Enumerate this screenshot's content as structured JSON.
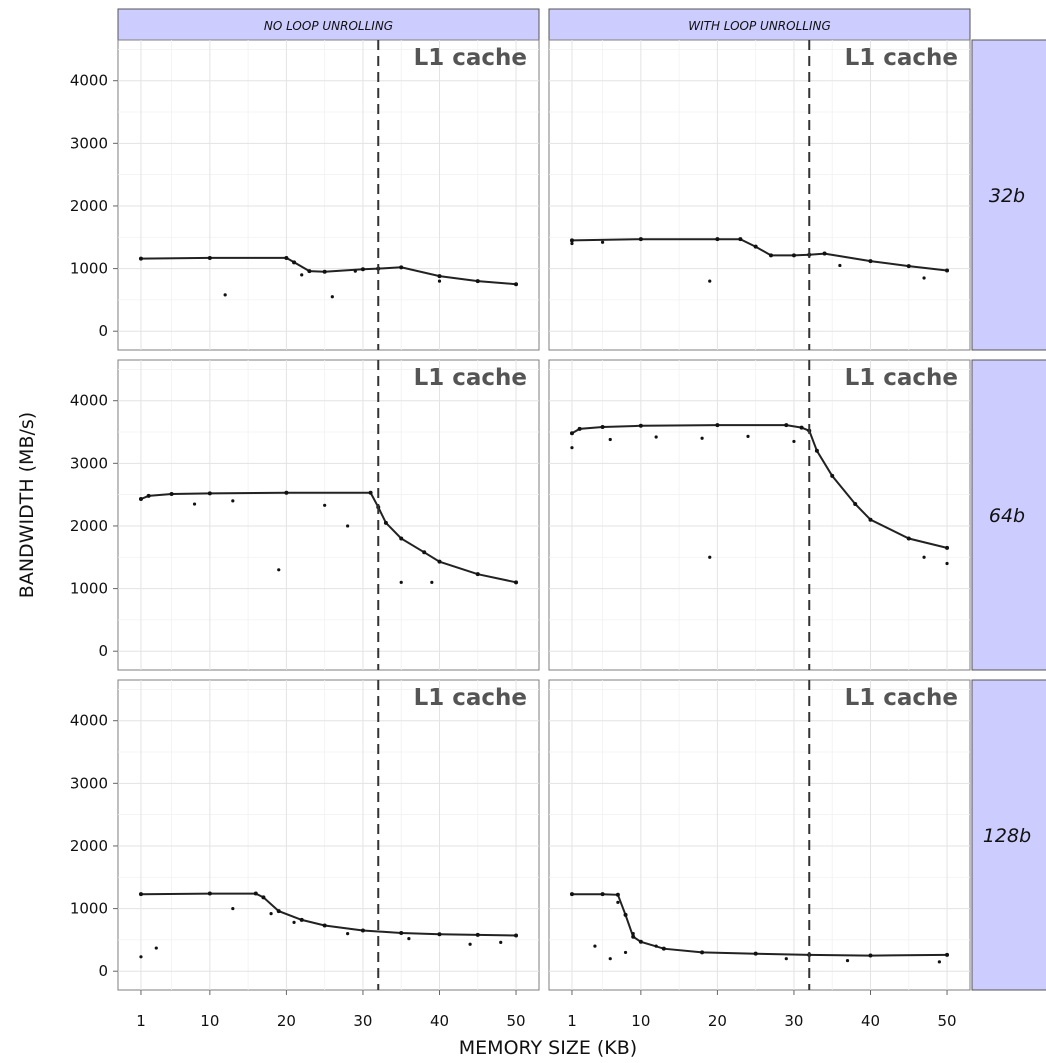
{
  "chart_data": {
    "type": "scatter",
    "xlabel": "MEMORY SIZE (KB)",
    "ylabel": "BANDWIDTH (MB/s)",
    "xlim": [
      -2,
      53
    ],
    "ylim": [
      -300,
      4650
    ],
    "x_ticks": [
      1,
      10,
      20,
      30,
      40,
      50
    ],
    "y_ticks": [
      0,
      1000,
      2000,
      3000,
      4000
    ],
    "grid": true,
    "columns": [
      "NO LOOP UNROLLING",
      "WITH LOOP UNROLLING"
    ],
    "rows": [
      "32b",
      "64b",
      "128b"
    ],
    "vline_x": 32,
    "vline_label": "L1 cache",
    "panels": [
      {
        "row": "32b",
        "column": "NO LOOP UNROLLING",
        "line": [
          [
            1,
            1160
          ],
          [
            10,
            1170
          ],
          [
            20,
            1170
          ],
          [
            21,
            1100
          ],
          [
            23,
            960
          ],
          [
            25,
            950
          ],
          [
            30,
            990
          ],
          [
            32,
            1000
          ],
          [
            35,
            1020
          ],
          [
            40,
            880
          ],
          [
            45,
            800
          ],
          [
            50,
            750
          ]
        ],
        "outliers": [
          [
            12,
            580
          ],
          [
            26,
            550
          ],
          [
            40,
            800
          ],
          [
            22,
            900
          ],
          [
            29,
            960
          ]
        ]
      },
      {
        "row": "32b",
        "column": "WITH LOOP UNROLLING",
        "line": [
          [
            1,
            1450
          ],
          [
            10,
            1470
          ],
          [
            20,
            1470
          ],
          [
            23,
            1470
          ],
          [
            25,
            1350
          ],
          [
            27,
            1210
          ],
          [
            30,
            1210
          ],
          [
            32,
            1220
          ],
          [
            34,
            1240
          ],
          [
            40,
            1120
          ],
          [
            45,
            1040
          ],
          [
            50,
            970
          ]
        ],
        "outliers": [
          [
            1,
            1400
          ],
          [
            19,
            800
          ],
          [
            36,
            1050
          ],
          [
            47,
            850
          ],
          [
            5,
            1420
          ]
        ]
      },
      {
        "row": "64b",
        "column": "NO LOOP UNROLLING",
        "line": [
          [
            1,
            2430
          ],
          [
            2,
            2480
          ],
          [
            5,
            2510
          ],
          [
            10,
            2520
          ],
          [
            20,
            2530
          ],
          [
            31,
            2530
          ],
          [
            32,
            2300
          ],
          [
            33,
            2050
          ],
          [
            35,
            1800
          ],
          [
            38,
            1580
          ],
          [
            40,
            1430
          ],
          [
            45,
            1230
          ],
          [
            50,
            1100
          ]
        ],
        "outliers": [
          [
            19,
            1300
          ],
          [
            35,
            1100
          ],
          [
            39,
            1100
          ],
          [
            28,
            2000
          ],
          [
            25,
            2330
          ],
          [
            8,
            2350
          ],
          [
            13,
            2400
          ]
        ]
      },
      {
        "row": "64b",
        "column": "WITH LOOP UNROLLING",
        "line": [
          [
            1,
            3480
          ],
          [
            2,
            3550
          ],
          [
            5,
            3580
          ],
          [
            10,
            3600
          ],
          [
            20,
            3610
          ],
          [
            29,
            3610
          ],
          [
            31,
            3570
          ],
          [
            32,
            3520
          ],
          [
            33,
            3200
          ],
          [
            35,
            2800
          ],
          [
            38,
            2350
          ],
          [
            40,
            2100
          ],
          [
            45,
            1800
          ],
          [
            50,
            1650
          ]
        ],
        "outliers": [
          [
            1,
            3250
          ],
          [
            19,
            1500
          ],
          [
            47,
            1500
          ],
          [
            50,
            1400
          ],
          [
            6,
            3380
          ],
          [
            12,
            3420
          ],
          [
            18,
            3400
          ],
          [
            24,
            3430
          ],
          [
            30,
            3350
          ]
        ]
      },
      {
        "row": "128b",
        "column": "NO LOOP UNROLLING",
        "line": [
          [
            1,
            1230
          ],
          [
            10,
            1240
          ],
          [
            16,
            1240
          ],
          [
            17,
            1180
          ],
          [
            19,
            960
          ],
          [
            22,
            820
          ],
          [
            25,
            730
          ],
          [
            30,
            650
          ],
          [
            35,
            610
          ],
          [
            40,
            590
          ],
          [
            45,
            580
          ],
          [
            50,
            570
          ]
        ],
        "outliers": [
          [
            1,
            230
          ],
          [
            3,
            370
          ],
          [
            13,
            1000
          ],
          [
            18,
            920
          ],
          [
            21,
            780
          ],
          [
            28,
            600
          ],
          [
            36,
            520
          ],
          [
            44,
            430
          ],
          [
            48,
            460
          ]
        ]
      },
      {
        "row": "128b",
        "column": "WITH LOOP UNROLLING",
        "line": [
          [
            1,
            1230
          ],
          [
            5,
            1230
          ],
          [
            7,
            1220
          ],
          [
            8,
            900
          ],
          [
            9,
            550
          ],
          [
            10,
            470
          ],
          [
            13,
            360
          ],
          [
            18,
            300
          ],
          [
            25,
            280
          ],
          [
            32,
            260
          ],
          [
            40,
            250
          ],
          [
            50,
            260
          ]
        ],
        "outliers": [
          [
            4,
            400
          ],
          [
            6,
            200
          ],
          [
            7,
            1100
          ],
          [
            8,
            300
          ],
          [
            9,
            600
          ],
          [
            12,
            400
          ],
          [
            29,
            200
          ],
          [
            37,
            170
          ],
          [
            49,
            150
          ]
        ]
      }
    ]
  }
}
